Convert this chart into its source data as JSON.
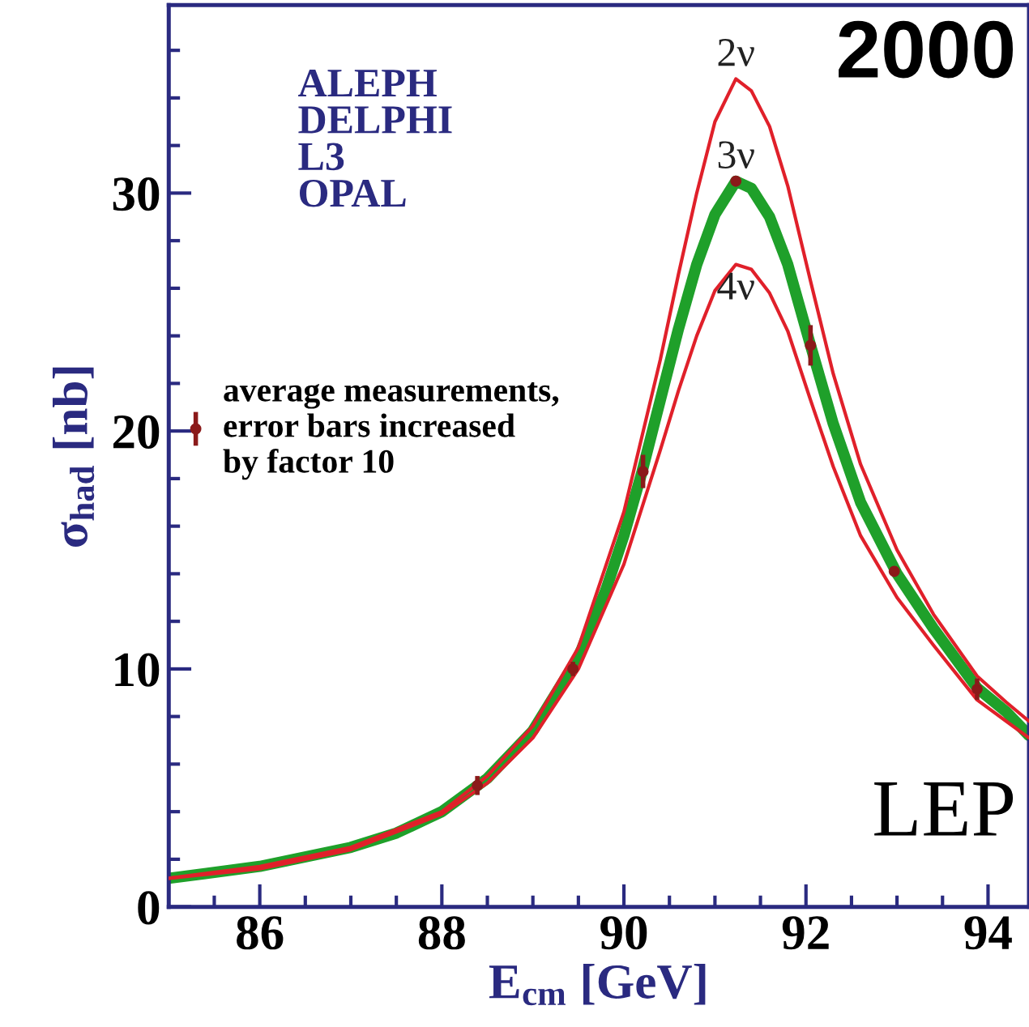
{
  "chart_data": {
    "type": "line",
    "xlabel": "E$_{cm}$ [GeV]",
    "ylabel": "σ$_{had}$ [nb]",
    "xlim": [
      85,
      94.45
    ],
    "ylim": [
      0,
      37.9
    ],
    "xticks": [
      {
        "value": 85.5,
        "label": null
      },
      86,
      {
        "value": 86.5,
        "label": null
      },
      {
        "value": 87,
        "label": null
      },
      {
        "value": 87.5,
        "label": null
      },
      88,
      {
        "value": 88.5,
        "label": null
      },
      {
        "value": 89,
        "label": null
      },
      {
        "value": 89.5,
        "label": null
      },
      90,
      {
        "value": 90.5,
        "label": null
      },
      {
        "value": 91,
        "label": null
      },
      {
        "value": 91.5,
        "label": null
      },
      92,
      {
        "value": 92.5,
        "label": null
      },
      {
        "value": 93,
        "label": null
      },
      {
        "value": 93.5,
        "label": null
      },
      94
    ],
    "yticks": [
      0,
      {
        "value": 2,
        "label": null
      },
      {
        "value": 4,
        "label": null
      },
      {
        "value": 6,
        "label": null
      },
      {
        "value": 8,
        "label": null
      },
      10,
      {
        "value": 12,
        "label": null
      },
      {
        "value": 14,
        "label": null
      },
      {
        "value": 16,
        "label": null
      },
      {
        "value": 18,
        "label": null
      },
      20,
      {
        "value": 22,
        "label": null
      },
      {
        "value": 24,
        "label": null
      },
      {
        "value": 26,
        "label": null
      },
      {
        "value": 28,
        "label": null
      },
      30,
      {
        "value": 32,
        "label": null
      },
      {
        "value": 34,
        "label": null
      },
      {
        "value": 36,
        "label": null
      }
    ],
    "grid": false,
    "legend": "left",
    "series": [
      {
        "name": "3ν",
        "color": "#1fa02a",
        "x": [
          85,
          86,
          87,
          87.5,
          88,
          88.5,
          89,
          89.5,
          89.8,
          90.0,
          90.2,
          90.4,
          90.6,
          90.8,
          91.0,
          91.23,
          91.4,
          91.6,
          91.8,
          92.05,
          92.3,
          92.6,
          93.0,
          93.4,
          93.88,
          94.2,
          94.45
        ],
        "values": [
          1.2,
          1.7,
          2.5,
          3.1,
          4.0,
          5.4,
          7.4,
          10.5,
          13.3,
          15.6,
          18.3,
          21.3,
          24.3,
          27.0,
          29.1,
          30.5,
          30.2,
          29.0,
          27.0,
          23.6,
          20.3,
          17.0,
          14.0,
          11.7,
          9.2,
          8.2,
          7.2
        ]
      },
      {
        "name": "2ν",
        "color": "#e0202a",
        "x": [
          85,
          86,
          87,
          88,
          88.5,
          89,
          89.5,
          90.0,
          90.4,
          90.6,
          90.8,
          91.0,
          91.23,
          91.4,
          91.6,
          91.8,
          92.05,
          92.3,
          92.6,
          93.0,
          93.4,
          93.88,
          94.2,
          94.45
        ],
        "values": [
          1.2,
          1.7,
          2.5,
          4.0,
          5.5,
          7.6,
          10.9,
          16.6,
          23.0,
          26.6,
          30.0,
          33.0,
          34.8,
          34.3,
          32.8,
          30.3,
          26.3,
          22.4,
          18.6,
          15.0,
          12.3,
          9.7,
          8.6,
          7.8
        ]
      },
      {
        "name": "4ν",
        "color": "#e0202a",
        "x": [
          85,
          86,
          87,
          88,
          88.5,
          89,
          89.5,
          90.0,
          90.4,
          90.6,
          90.8,
          91.0,
          91.23,
          91.4,
          91.6,
          91.8,
          92.05,
          92.3,
          92.6,
          93.0,
          93.4,
          93.88,
          94.2,
          94.45
        ],
        "values": [
          1.2,
          1.6,
          2.4,
          3.9,
          5.2,
          7.1,
          10.0,
          14.4,
          19.2,
          21.7,
          24.0,
          25.9,
          27.0,
          26.8,
          25.8,
          24.2,
          21.3,
          18.5,
          15.6,
          13.0,
          11.0,
          8.7,
          7.8,
          7.1
        ]
      },
      {
        "type": "scatter",
        "name": "average measurements,\nerror bars increased\nby factor 10",
        "color": "#8b1a1a",
        "marker": "circle",
        "x": [
          88.39,
          89.44,
          90.21,
          91.23,
          92.05,
          92.97,
          93.88
        ],
        "values": [
          5.1,
          10.0,
          18.3,
          30.5,
          23.6,
          14.1,
          9.15
        ],
        "errors": [
          0.4,
          0.3,
          0.7,
          0.2,
          0.85,
          0.2,
          0.45
        ]
      }
    ],
    "annotations": [
      "ALEPH\nDELPHI\nL3\nOPAL",
      "2000",
      "LEP"
    ]
  }
}
